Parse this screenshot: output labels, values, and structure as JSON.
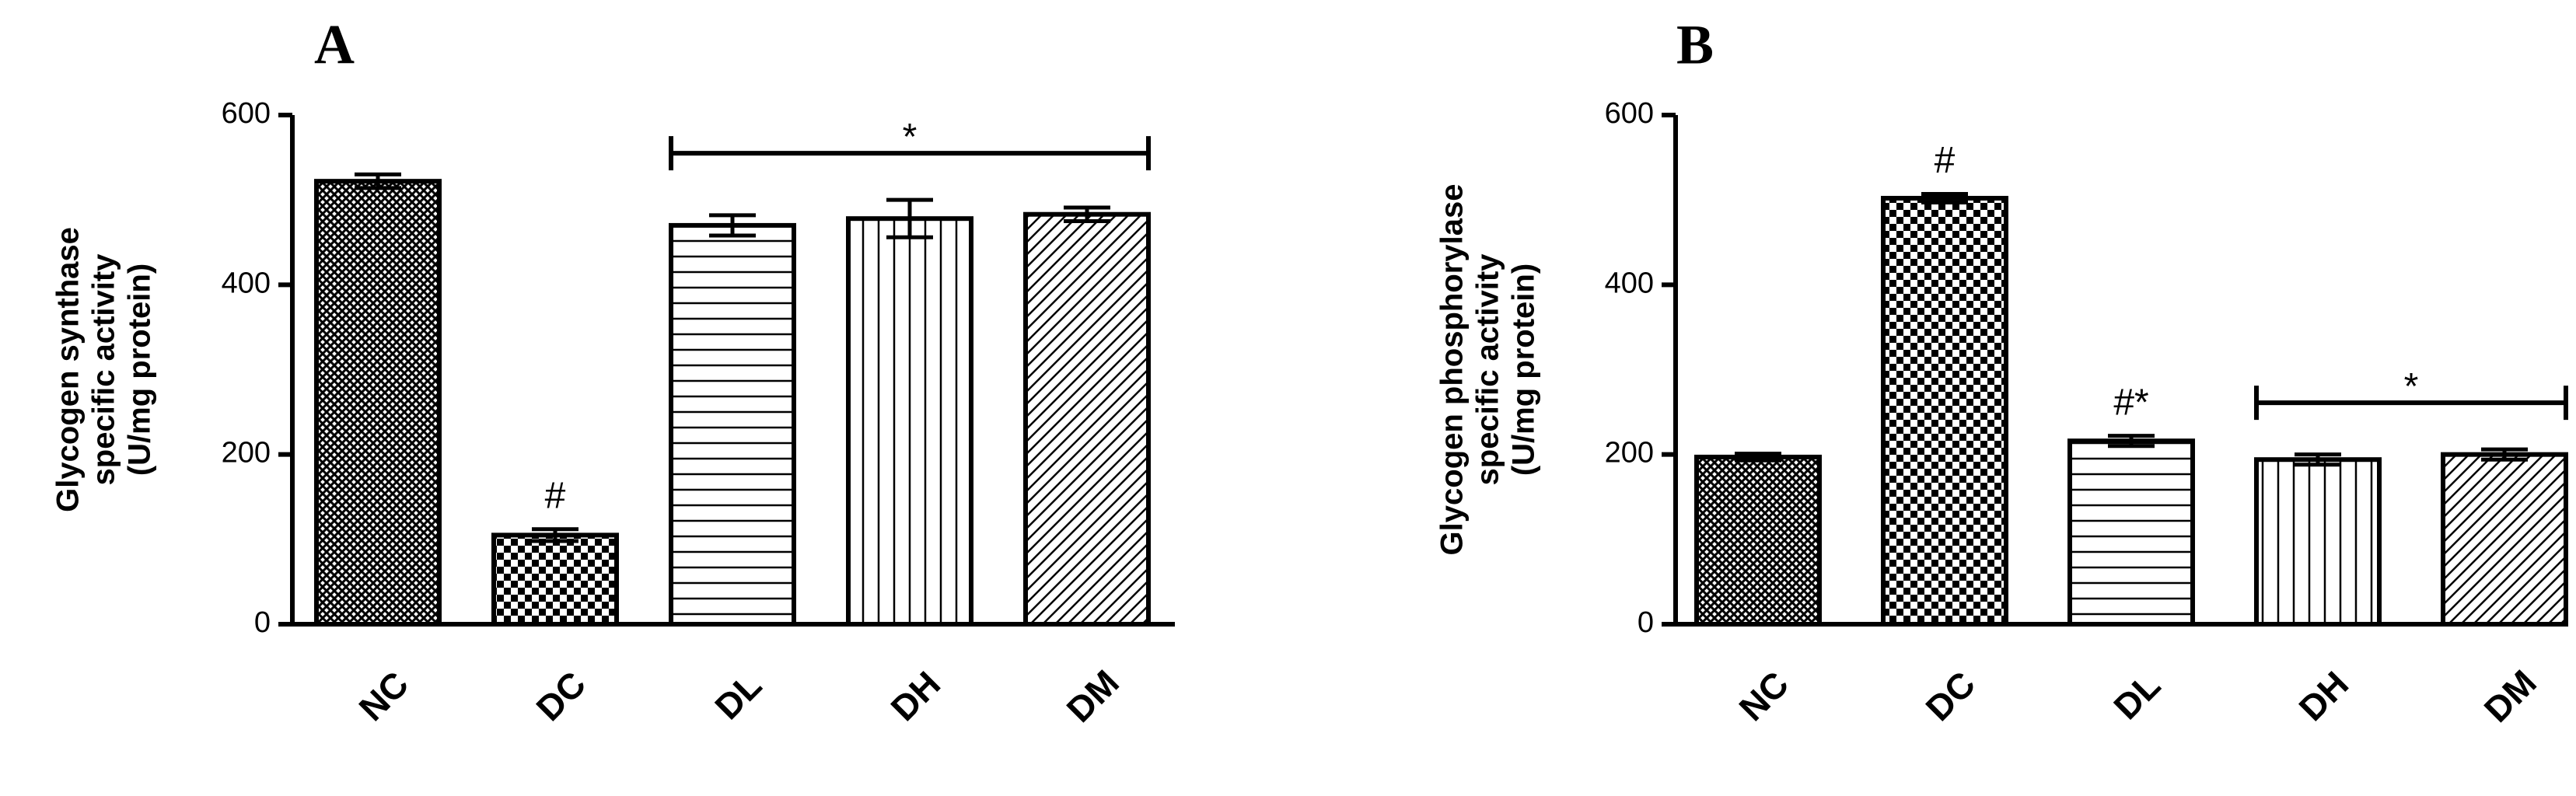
{
  "chart_data": [
    {
      "type": "bar",
      "panel": "A",
      "y_label": [
        "Glycogen synthase",
        "specific  activity",
        "(U/mg protein)"
      ],
      "categories": [
        "NC",
        "DC",
        "DL",
        "DH",
        "DM"
      ],
      "values": [
        522,
        105,
        470,
        478,
        483
      ],
      "errors": [
        8,
        7,
        12,
        22,
        8
      ],
      "patterns": [
        "crosshatch",
        "checker",
        "horizontal",
        "vertical",
        "diagonal"
      ],
      "color": "#000000",
      "ylim": [
        0,
        600
      ],
      "yticks": [
        0,
        200,
        400,
        600
      ],
      "annotations": [
        {
          "text": "#",
          "from": "DC",
          "to": "DC"
        },
        {
          "text": "*",
          "from": "DL",
          "to": "DM"
        }
      ]
    },
    {
      "type": "bar",
      "panel": "B",
      "y_label": [
        "Glycogen phosphorylase",
        "specific activity",
        "(U/mg protein)"
      ],
      "categories": [
        "NC",
        "DC",
        "DL",
        "DH",
        "DM"
      ],
      "values": [
        197,
        502,
        216,
        194,
        200
      ],
      "errors": [
        4,
        5,
        6,
        6,
        6
      ],
      "patterns": [
        "crosshatch",
        "checker",
        "horizontal",
        "vertical",
        "diagonal"
      ],
      "color": "#000000",
      "ylim": [
        0,
        600
      ],
      "yticks": [
        0,
        200,
        400,
        600
      ],
      "annotations": [
        {
          "text": "#",
          "from": "DC",
          "to": "DC"
        },
        {
          "text": "#*",
          "from": "DL",
          "to": "DL"
        },
        {
          "text": "*",
          "from": "DH",
          "to": "DM"
        }
      ]
    }
  ]
}
